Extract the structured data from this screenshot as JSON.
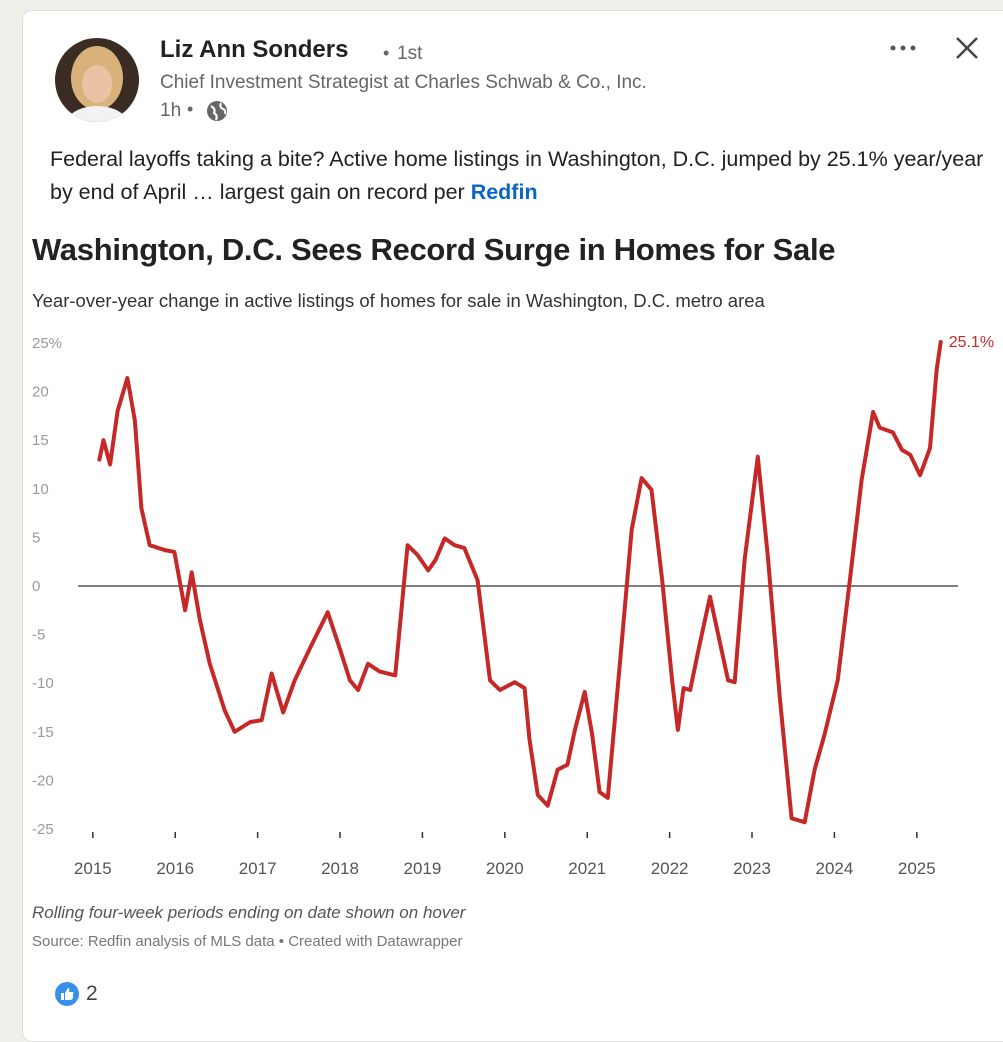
{
  "post": {
    "author": "Liz Ann Sonders",
    "degree": "1st",
    "headline": "Chief Investment Strategist at Charles Schwab & Co., Inc.",
    "time": "1h",
    "text": "Federal layoffs taking a bite? Active home listings in Washington, D.C. jumped by 25.1% year/year by end of April … largest gain on record per ",
    "link": "Redfin",
    "reactions": 2
  },
  "chart_data": {
    "type": "line",
    "title": "Washington, D.C. Sees Record Surge in Homes for Sale",
    "subtitle": "Year-over-year change in active listings of homes for sale in Washington, D.C. metro area",
    "note": "Rolling four-week periods ending on date shown on hover",
    "source": "Source: Redfin analysis of MLS data • Created with Datawrapper",
    "end_label": "25.1%",
    "color": "#c62828",
    "zero_line": true,
    "grid": false,
    "x": [
      2015.08,
      2015.13,
      2015.21,
      2015.3,
      2015.42,
      2015.51,
      2015.59,
      2015.69,
      2015.87,
      2015.99,
      2016.12,
      2016.2,
      2016.3,
      2016.42,
      2016.6,
      2016.72,
      2016.91,
      2017.05,
      2017.17,
      2017.31,
      2017.45,
      2017.63,
      2017.85,
      2018.0,
      2018.12,
      2018.22,
      2018.34,
      2018.48,
      2018.67,
      2018.82,
      2018.94,
      2019.07,
      2019.16,
      2019.27,
      2019.39,
      2019.51,
      2019.67,
      2019.82,
      2019.94,
      2020.12,
      2020.24,
      2020.3,
      2020.4,
      2020.52,
      2020.64,
      2020.76,
      2020.85,
      2020.97,
      2021.06,
      2021.15,
      2021.25,
      2021.4,
      2021.54,
      2021.66,
      2021.78,
      2021.91,
      2022.03,
      2022.1,
      2022.17,
      2022.25,
      2022.35,
      2022.49,
      2022.59,
      2022.71,
      2022.79,
      2022.91,
      2023.07,
      2023.19,
      2023.34,
      2023.48,
      2023.64,
      2023.76,
      2023.88,
      2024.04,
      2024.19,
      2024.33,
      2024.47,
      2024.55,
      2024.71,
      2024.82,
      2024.92,
      2025.04,
      2025.16,
      2025.24,
      2025.29
    ],
    "series": [
      {
        "name": "Year-over-year change",
        "color": "#c62828",
        "values": [
          13,
          15,
          12.5,
          18,
          21.4,
          17,
          8,
          4.2,
          3.7,
          3.5,
          -2.5,
          1.4,
          -3.5,
          -8,
          -12.8,
          -15,
          -14,
          -13.8,
          -9,
          -13,
          -9.7,
          -6.5,
          -2.7,
          -6.5,
          -9.7,
          -10.7,
          -8,
          -8.8,
          -9.2,
          4.2,
          3.2,
          1.6,
          2.7,
          4.9,
          4.2,
          3.9,
          0.6,
          -9.7,
          -10.7,
          -9.9,
          -10.5,
          -15.8,
          -21.5,
          -22.6,
          -18.9,
          -18.4,
          -14.8,
          -10.9,
          -15.3,
          -21.2,
          -21.8,
          -7.6,
          5.8,
          11.1,
          9.9,
          0.6,
          -9.7,
          -14.8,
          -10.5,
          -10.7,
          -6.6,
          -1.1,
          -5,
          -9.7,
          -9.9,
          2.7,
          13.3,
          3.2,
          -11.7,
          -23.9,
          -24.3,
          -18.9,
          -15.3,
          -9.7,
          0.8,
          10.9,
          17.9,
          16.3,
          15.8,
          14,
          13.5,
          11.4,
          14.2,
          22.2,
          25.1
        ]
      }
    ],
    "xlim": [
      2014.82,
      2025.5
    ],
    "xticks": [
      2015,
      2016,
      2017,
      2018,
      2019,
      2020,
      2021,
      2022,
      2023,
      2024,
      2025
    ],
    "ylim": [
      -25,
      25
    ],
    "yticks": [
      -25,
      -20,
      -15,
      -10,
      -5,
      0,
      5,
      10,
      15,
      20,
      {
        "value": 25,
        "label": "25%"
      }
    ]
  }
}
